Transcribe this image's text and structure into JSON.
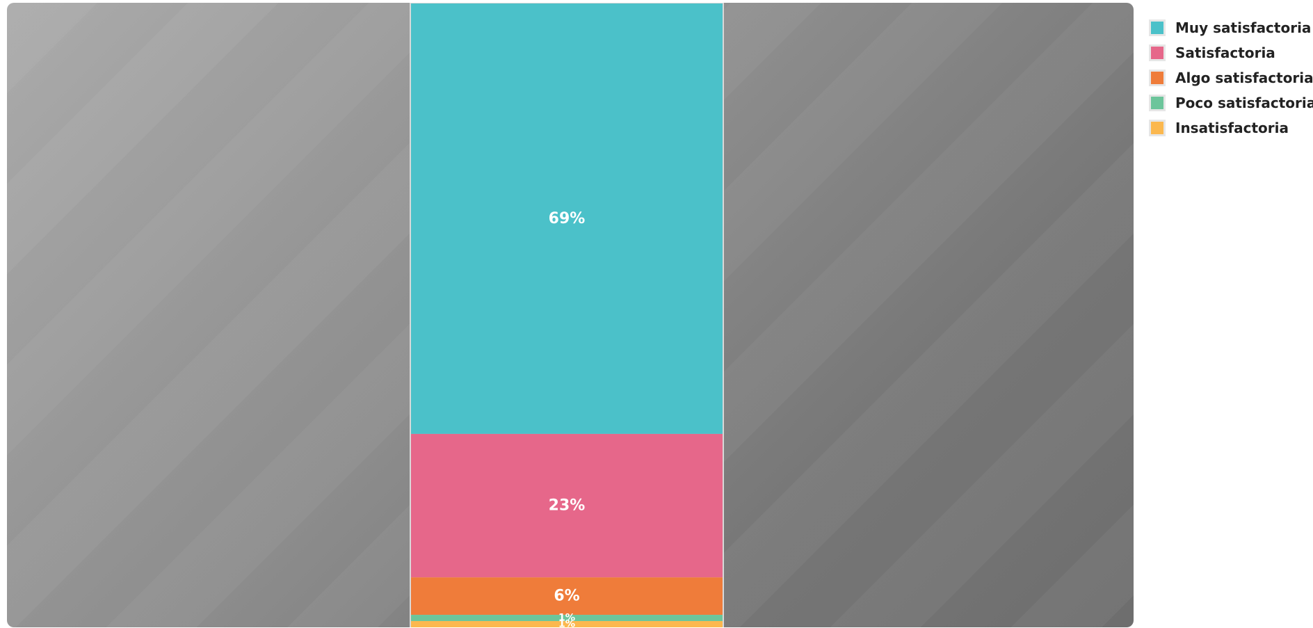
{
  "chart_data": {
    "type": "bar",
    "stacked": true,
    "normalized_percent": true,
    "categories": [
      ""
    ],
    "series": [
      {
        "name": "Muy satisfactoria",
        "values": [
          69
        ],
        "label": "69%",
        "color": "#4bc1c9"
      },
      {
        "name": "Satisfactoria",
        "values": [
          23
        ],
        "label": "23%",
        "color": "#e6678a"
      },
      {
        "name": "Algo satisfactoria",
        "values": [
          6
        ],
        "label": "6%",
        "color": "#ef7c3a"
      },
      {
        "name": "Poco satisfactoria",
        "values": [
          1
        ],
        "label": "1%",
        "color": "#6cc59b"
      },
      {
        "name": "Insatisfactoria",
        "values": [
          1
        ],
        "label": "1%",
        "color": "#fbb84f"
      }
    ],
    "ylim": [
      0,
      100
    ],
    "title": "",
    "xlabel": "",
    "ylabel": "",
    "grid": false,
    "legend_position": "top-right"
  }
}
